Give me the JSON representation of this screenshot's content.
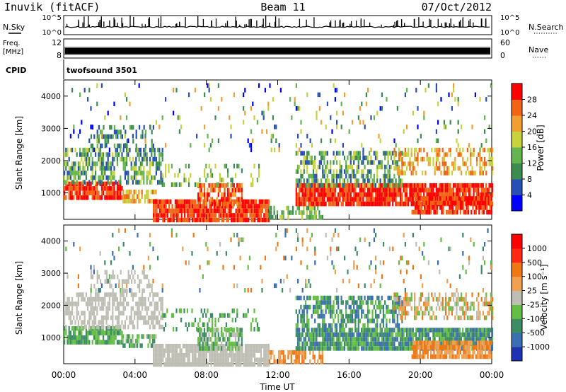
{
  "header": {
    "station": "Inuvik (fitACF)",
    "beam": "Beam 11",
    "date": "07/Oct/2012"
  },
  "panels": {
    "nsky": {
      "left_label": "N.Sky",
      "right_label": "N.Search",
      "ticks_left": [
        "10^5",
        "10^0"
      ],
      "ticks_right": [
        "10^5",
        "10^0"
      ]
    },
    "freq": {
      "left_label_1": "Freq.",
      "left_label_2": "[MHz]",
      "right_label": "Nave",
      "ticks_left": [
        "12",
        "8"
      ],
      "ticks_right": [
        "60",
        "0"
      ]
    },
    "cpid": {
      "label": "CPID",
      "value": "twofsound 3501"
    }
  },
  "chart_data": [
    {
      "type": "heatmap",
      "name": "power",
      "ylabel": "Slant Range [km]",
      "xlabel": "Time UT",
      "y_ticks": [
        "4000",
        "3000",
        "2000",
        "1000"
      ],
      "ylim": [
        180,
        4500
      ],
      "colorbar": {
        "label": "Power [dB]",
        "ticks": [
          "28",
          "24",
          "20",
          "16",
          "12",
          "8",
          "4"
        ],
        "colors": [
          "#0000ff",
          "#2850b4",
          "#3c8c50",
          "#64b450",
          "#c8d23c",
          "#f0a032",
          "#f06414",
          "#ff0000"
        ]
      }
    },
    {
      "type": "heatmap",
      "name": "velocity",
      "ylabel": "Slant Range [km]",
      "xlabel": "Time UT",
      "y_ticks": [
        "4000",
        "3000",
        "2000",
        "1000"
      ],
      "ylim": [
        180,
        4500
      ],
      "colorbar": {
        "label": "Velocity [m s⁻¹]",
        "ticks": [
          "1000",
          "500",
          "100",
          "25",
          "-25",
          "-100",
          "-500",
          "-1000"
        ],
        "colors": [
          "#1e32b4",
          "#3c6eb4",
          "#3c8c64",
          "#64be46",
          "#bebeb4",
          "#f0a050",
          "#f07814",
          "#ff2814",
          "#ff0000"
        ]
      }
    }
  ],
  "x_axis": {
    "label": "Time UT",
    "ticks": [
      "00:00",
      "04:00",
      "08:00",
      "12:00",
      "16:00",
      "20:00",
      "00:00"
    ]
  }
}
